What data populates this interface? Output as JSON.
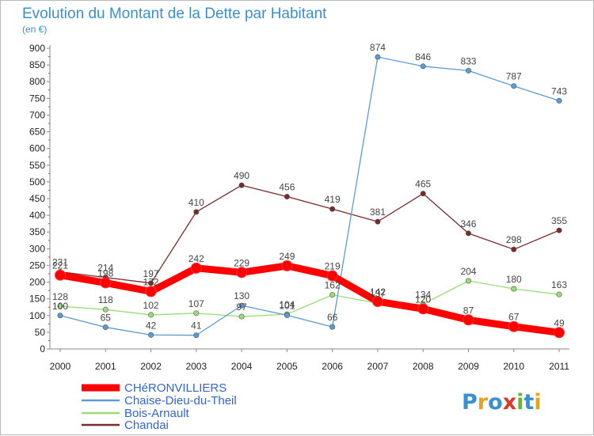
{
  "title": "Evolution du Montant de la Dette par Habitant",
  "subtitle": "(en €)",
  "logo": {
    "text": "Proxiti",
    "colors": [
      "#3a8fd0",
      "#e8a21c",
      "#3a8fd0",
      "#d93a2b",
      "#6bb33a",
      "#3a8fd0",
      "#e8a21c"
    ]
  },
  "chart_data": {
    "type": "line",
    "title": "Evolution du Montant de la Dette par Habitant",
    "ylabel": "(en €)",
    "x": [
      "2000",
      "2001",
      "2002",
      "2003",
      "2004",
      "2005",
      "2006",
      "2007",
      "2008",
      "2009",
      "2010",
      "2011"
    ],
    "y_ticks": [
      "0",
      "50",
      "100",
      "150",
      "200",
      "250",
      "300",
      "350",
      "400",
      "450",
      "500",
      "550",
      "600",
      "650",
      "700",
      "750",
      "800",
      "850",
      "900"
    ],
    "ylim": [
      0,
      900
    ],
    "grid": false,
    "legend_position": "bottom-left",
    "series": [
      {
        "name": "CHéRONVILLIERS",
        "color": "#ff0000",
        "values": [
          221,
          198,
          172,
          242,
          229,
          249,
          219,
          142,
          120,
          87,
          67,
          49
        ],
        "labels": [
          "221",
          "198",
          "172",
          "242",
          "229",
          "249",
          "219",
          "142",
          "120",
          "87",
          "67",
          "49"
        ]
      },
      {
        "name": "Chaise-Dieu-du-Theil",
        "color": "#5b9bd5",
        "values": [
          100,
          65,
          42,
          41,
          130,
          101,
          66,
          874,
          846,
          833,
          787,
          743
        ],
        "labels": [
          "100",
          "65",
          "42",
          "41",
          "130",
          "101",
          "66",
          "874",
          "846",
          "833",
          "787",
          "743"
        ]
      },
      {
        "name": "Bois-Arnault",
        "color": "#99dd77",
        "values": [
          128,
          118,
          102,
          107,
          97,
          104,
          162,
          137,
          134,
          204,
          180,
          163
        ],
        "labels": [
          "128",
          "118",
          "102",
          "107",
          "97",
          "104",
          "162",
          "137",
          "134",
          "204",
          "180",
          "163"
        ]
      },
      {
        "name": "Chandai",
        "color": "#7b2a2a",
        "values": [
          231,
          214,
          197,
          410,
          490,
          456,
          419,
          381,
          465,
          346,
          298,
          355
        ],
        "labels": [
          "231",
          "214",
          "197",
          "410",
          "490",
          "456",
          "419",
          "381",
          "465",
          "346",
          "298",
          "355"
        ]
      }
    ]
  }
}
